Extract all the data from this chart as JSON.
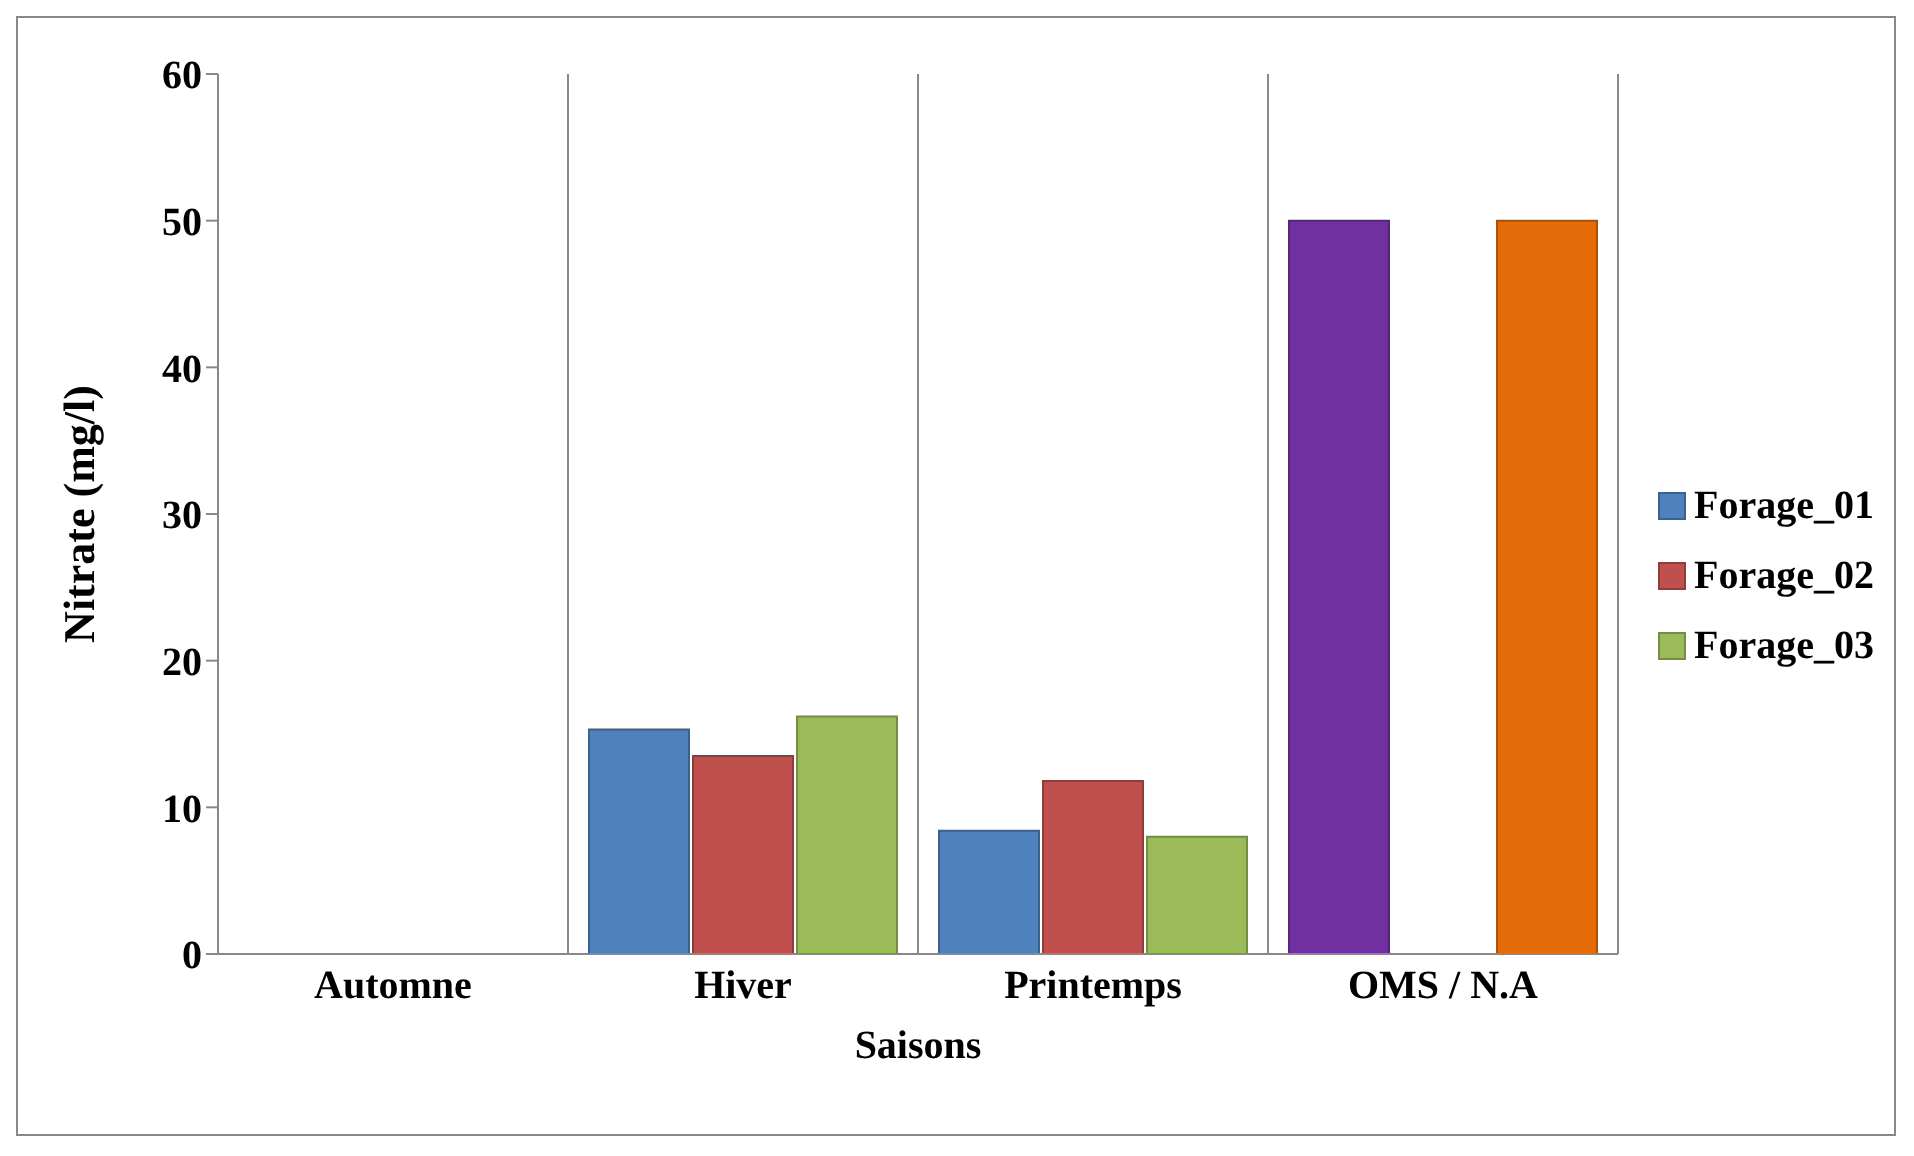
{
  "chart_data": {
    "type": "bar",
    "xlabel": "Saisons",
    "ylabel": "Nitrate (mg/l)",
    "categories": [
      "Automne",
      "Hiver",
      "Printemps",
      "OMS / N.A"
    ],
    "series": [
      {
        "name": "Forage_01",
        "color": "#4f81bd",
        "colors": [
          "#4f81bd",
          "#4f81bd",
          "#4f81bd",
          "#7030a0"
        ],
        "values": [
          null,
          15.3,
          8.4,
          50
        ]
      },
      {
        "name": "Forage_02",
        "color": "#c0504d",
        "values": [
          null,
          13.5,
          11.8,
          null
        ]
      },
      {
        "name": "Forage_03",
        "color": "#9bbb59",
        "colors": [
          "#9bbb59",
          "#9bbb59",
          "#9bbb59",
          "#e36c09"
        ],
        "values": [
          null,
          16.2,
          8.0,
          50
        ]
      }
    ],
    "ylim": [
      0,
      60
    ],
    "yticks": [
      0,
      10,
      20,
      30,
      40,
      50,
      60
    ],
    "grid": "x",
    "legend": "right"
  }
}
